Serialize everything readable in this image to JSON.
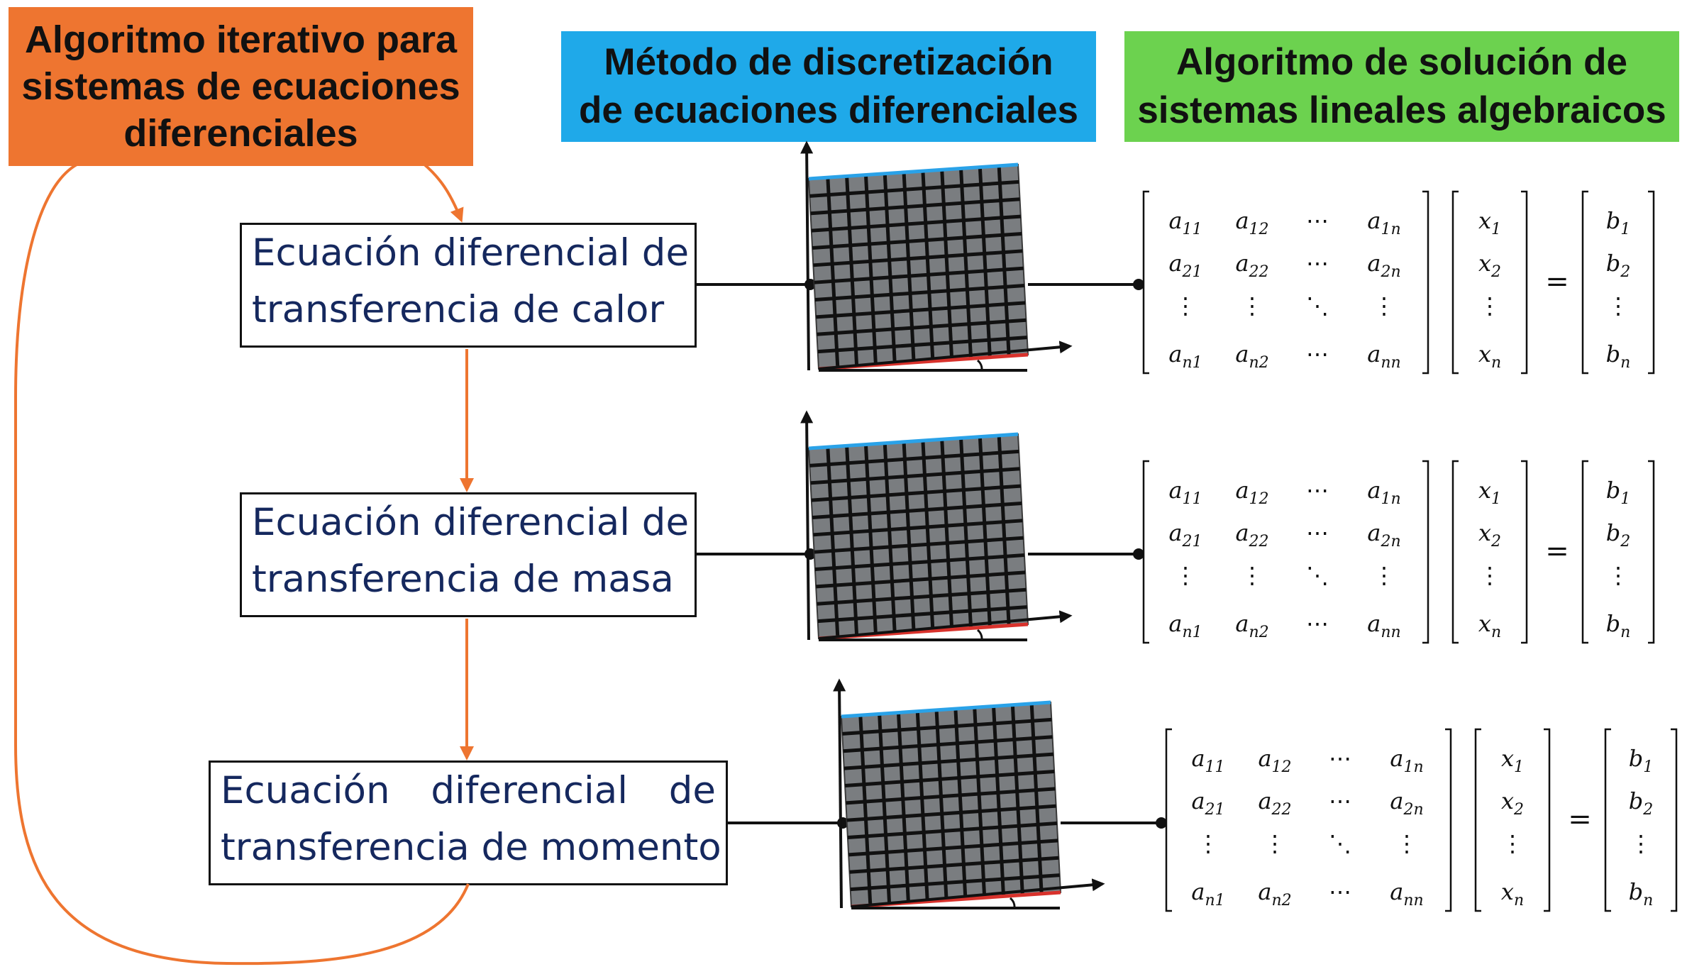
{
  "headers": {
    "iterative": "Algoritmo iterativo para\nsistemas de ecuaciones\ndiferenciales",
    "discretization": "Método de discretización\nde ecuaciones diferenciales",
    "solver": "Algoritmo de solución de\nsistemas lineales algebraicos"
  },
  "equations": [
    {
      "line1": "Ecuación diferencial de",
      "line2": "transferencia de calor"
    },
    {
      "line1": "Ecuación diferencial de",
      "line2": "transferencia de masa"
    },
    {
      "line1": "Ecuación diferencial de",
      "line2": "transferencia de momento"
    }
  ],
  "matrix": {
    "a": [
      [
        "a11",
        "a12",
        "⋯",
        "a1n"
      ],
      [
        "a21",
        "a22",
        "⋯",
        "a2n"
      ],
      [
        "⋮",
        "⋮",
        "⋱",
        "⋮"
      ],
      [
        "an1",
        "an2",
        "⋯",
        "ann"
      ]
    ],
    "x": [
      "x1",
      "x2",
      "⋮",
      "xn"
    ],
    "b": [
      "b1",
      "b2",
      "⋮",
      "bn"
    ],
    "equals": "="
  },
  "colors": {
    "orange": "#ee7530",
    "blue": "#1fa9e9",
    "green": "#6cd24f",
    "navy_text": "#15285e",
    "grid_fill": "#7a7d80",
    "grid_top_edge": "#2aa2e8",
    "grid_bottom_edge": "#d8322c"
  }
}
